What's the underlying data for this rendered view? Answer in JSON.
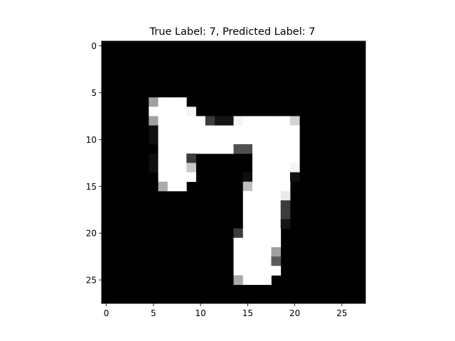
{
  "chart_data": {
    "type": "heatmap",
    "title": "True Label: 7, Predicted Label: 7",
    "colormap": "gray",
    "rows": 28,
    "cols": 28,
    "value_range": [
      0,
      255
    ],
    "x_ticks": [
      0,
      5,
      10,
      15,
      20,
      25
    ],
    "y_ticks": [
      0,
      5,
      10,
      15,
      20,
      25
    ],
    "x_tick_labels": [
      "0",
      "5",
      "10",
      "15",
      "20",
      "25"
    ],
    "y_tick_labels": [
      "0",
      "5",
      "10",
      "15",
      "20",
      "25"
    ],
    "grid": false,
    "pixels": [
      {
        "r": 6,
        "c": 5,
        "v": 160
      },
      {
        "r": 6,
        "c": 6,
        "v": 255
      },
      {
        "r": 6,
        "c": 7,
        "v": 255
      },
      {
        "r": 6,
        "c": 8,
        "v": 255
      },
      {
        "r": 7,
        "c": 5,
        "v": 255
      },
      {
        "r": 7,
        "c": 6,
        "v": 255
      },
      {
        "r": 7,
        "c": 7,
        "v": 255
      },
      {
        "r": 7,
        "c": 8,
        "v": 255
      },
      {
        "r": 7,
        "c": 9,
        "v": 245
      },
      {
        "r": 8,
        "c": 5,
        "v": 160
      },
      {
        "r": 8,
        "c": 6,
        "v": 255
      },
      {
        "r": 8,
        "c": 7,
        "v": 255
      },
      {
        "r": 8,
        "c": 8,
        "v": 255
      },
      {
        "r": 8,
        "c": 9,
        "v": 255
      },
      {
        "r": 8,
        "c": 10,
        "v": 255
      },
      {
        "r": 8,
        "c": 11,
        "v": 60
      },
      {
        "r": 8,
        "c": 12,
        "v": 20
      },
      {
        "r": 8,
        "c": 13,
        "v": 20
      },
      {
        "r": 8,
        "c": 14,
        "v": 245
      },
      {
        "r": 8,
        "c": 15,
        "v": 255
      },
      {
        "r": 8,
        "c": 16,
        "v": 255
      },
      {
        "r": 8,
        "c": 17,
        "v": 255
      },
      {
        "r": 8,
        "c": 18,
        "v": 255
      },
      {
        "r": 8,
        "c": 19,
        "v": 255
      },
      {
        "r": 8,
        "c": 20,
        "v": 210
      },
      {
        "r": 9,
        "c": 5,
        "v": 15
      },
      {
        "r": 9,
        "c": 6,
        "v": 255
      },
      {
        "r": 9,
        "c": 7,
        "v": 255
      },
      {
        "r": 9,
        "c": 8,
        "v": 255
      },
      {
        "r": 9,
        "c": 9,
        "v": 255
      },
      {
        "r": 9,
        "c": 10,
        "v": 255
      },
      {
        "r": 9,
        "c": 11,
        "v": 255
      },
      {
        "r": 9,
        "c": 12,
        "v": 255
      },
      {
        "r": 9,
        "c": 13,
        "v": 255
      },
      {
        "r": 9,
        "c": 14,
        "v": 255
      },
      {
        "r": 9,
        "c": 15,
        "v": 255
      },
      {
        "r": 9,
        "c": 16,
        "v": 255
      },
      {
        "r": 9,
        "c": 17,
        "v": 255
      },
      {
        "r": 9,
        "c": 18,
        "v": 255
      },
      {
        "r": 9,
        "c": 19,
        "v": 255
      },
      {
        "r": 9,
        "c": 20,
        "v": 255
      },
      {
        "r": 10,
        "c": 5,
        "v": 15
      },
      {
        "r": 10,
        "c": 6,
        "v": 255
      },
      {
        "r": 10,
        "c": 7,
        "v": 255
      },
      {
        "r": 10,
        "c": 8,
        "v": 255
      },
      {
        "r": 10,
        "c": 9,
        "v": 255
      },
      {
        "r": 10,
        "c": 10,
        "v": 255
      },
      {
        "r": 10,
        "c": 11,
        "v": 255
      },
      {
        "r": 10,
        "c": 12,
        "v": 255
      },
      {
        "r": 10,
        "c": 13,
        "v": 255
      },
      {
        "r": 10,
        "c": 14,
        "v": 255
      },
      {
        "r": 10,
        "c": 15,
        "v": 255
      },
      {
        "r": 10,
        "c": 16,
        "v": 255
      },
      {
        "r": 10,
        "c": 17,
        "v": 255
      },
      {
        "r": 10,
        "c": 18,
        "v": 255
      },
      {
        "r": 10,
        "c": 19,
        "v": 255
      },
      {
        "r": 10,
        "c": 20,
        "v": 255
      },
      {
        "r": 11,
        "c": 6,
        "v": 255
      },
      {
        "r": 11,
        "c": 7,
        "v": 255
      },
      {
        "r": 11,
        "c": 8,
        "v": 255
      },
      {
        "r": 11,
        "c": 9,
        "v": 255
      },
      {
        "r": 11,
        "c": 10,
        "v": 255
      },
      {
        "r": 11,
        "c": 11,
        "v": 255
      },
      {
        "r": 11,
        "c": 12,
        "v": 255
      },
      {
        "r": 11,
        "c": 13,
        "v": 255
      },
      {
        "r": 11,
        "c": 14,
        "v": 80
      },
      {
        "r": 11,
        "c": 15,
        "v": 80
      },
      {
        "r": 11,
        "c": 16,
        "v": 255
      },
      {
        "r": 11,
        "c": 17,
        "v": 255
      },
      {
        "r": 11,
        "c": 18,
        "v": 255
      },
      {
        "r": 11,
        "c": 19,
        "v": 255
      },
      {
        "r": 11,
        "c": 20,
        "v": 255
      },
      {
        "r": 12,
        "c": 5,
        "v": 15
      },
      {
        "r": 12,
        "c": 6,
        "v": 255
      },
      {
        "r": 12,
        "c": 7,
        "v": 255
      },
      {
        "r": 12,
        "c": 8,
        "v": 255
      },
      {
        "r": 12,
        "c": 9,
        "v": 60
      },
      {
        "r": 12,
        "c": 16,
        "v": 255
      },
      {
        "r": 12,
        "c": 17,
        "v": 255
      },
      {
        "r": 12,
        "c": 18,
        "v": 255
      },
      {
        "r": 12,
        "c": 19,
        "v": 255
      },
      {
        "r": 12,
        "c": 20,
        "v": 255
      },
      {
        "r": 13,
        "c": 5,
        "v": 15
      },
      {
        "r": 13,
        "c": 6,
        "v": 255
      },
      {
        "r": 13,
        "c": 7,
        "v": 255
      },
      {
        "r": 13,
        "c": 8,
        "v": 255
      },
      {
        "r": 13,
        "c": 9,
        "v": 200
      },
      {
        "r": 13,
        "c": 16,
        "v": 255
      },
      {
        "r": 13,
        "c": 17,
        "v": 255
      },
      {
        "r": 13,
        "c": 18,
        "v": 255
      },
      {
        "r": 13,
        "c": 19,
        "v": 255
      },
      {
        "r": 13,
        "c": 20,
        "v": 245
      },
      {
        "r": 14,
        "c": 6,
        "v": 255
      },
      {
        "r": 14,
        "c": 7,
        "v": 255
      },
      {
        "r": 14,
        "c": 8,
        "v": 255
      },
      {
        "r": 14,
        "c": 9,
        "v": 255
      },
      {
        "r": 14,
        "c": 15,
        "v": 15
      },
      {
        "r": 14,
        "c": 16,
        "v": 255
      },
      {
        "r": 14,
        "c": 17,
        "v": 255
      },
      {
        "r": 14,
        "c": 18,
        "v": 255
      },
      {
        "r": 14,
        "c": 19,
        "v": 255
      },
      {
        "r": 14,
        "c": 20,
        "v": 15
      },
      {
        "r": 15,
        "c": 6,
        "v": 170
      },
      {
        "r": 15,
        "c": 7,
        "v": 255
      },
      {
        "r": 15,
        "c": 8,
        "v": 255
      },
      {
        "r": 15,
        "c": 15,
        "v": 190
      },
      {
        "r": 15,
        "c": 16,
        "v": 255
      },
      {
        "r": 15,
        "c": 17,
        "v": 255
      },
      {
        "r": 15,
        "c": 18,
        "v": 255
      },
      {
        "r": 15,
        "c": 19,
        "v": 255
      },
      {
        "r": 16,
        "c": 15,
        "v": 255
      },
      {
        "r": 16,
        "c": 16,
        "v": 255
      },
      {
        "r": 16,
        "c": 17,
        "v": 255
      },
      {
        "r": 16,
        "c": 18,
        "v": 255
      },
      {
        "r": 16,
        "c": 19,
        "v": 235
      },
      {
        "r": 17,
        "c": 15,
        "v": 255
      },
      {
        "r": 17,
        "c": 16,
        "v": 255
      },
      {
        "r": 17,
        "c": 17,
        "v": 255
      },
      {
        "r": 17,
        "c": 18,
        "v": 255
      },
      {
        "r": 17,
        "c": 19,
        "v": 60
      },
      {
        "r": 18,
        "c": 15,
        "v": 255
      },
      {
        "r": 18,
        "c": 16,
        "v": 255
      },
      {
        "r": 18,
        "c": 17,
        "v": 255
      },
      {
        "r": 18,
        "c": 18,
        "v": 255
      },
      {
        "r": 18,
        "c": 19,
        "v": 60
      },
      {
        "r": 19,
        "c": 15,
        "v": 255
      },
      {
        "r": 19,
        "c": 16,
        "v": 255
      },
      {
        "r": 19,
        "c": 17,
        "v": 255
      },
      {
        "r": 19,
        "c": 18,
        "v": 255
      },
      {
        "r": 19,
        "c": 19,
        "v": 20
      },
      {
        "r": 20,
        "c": 14,
        "v": 60
      },
      {
        "r": 20,
        "c": 15,
        "v": 255
      },
      {
        "r": 20,
        "c": 16,
        "v": 255
      },
      {
        "r": 20,
        "c": 17,
        "v": 255
      },
      {
        "r": 20,
        "c": 18,
        "v": 255
      },
      {
        "r": 21,
        "c": 14,
        "v": 255
      },
      {
        "r": 21,
        "c": 15,
        "v": 255
      },
      {
        "r": 21,
        "c": 16,
        "v": 255
      },
      {
        "r": 21,
        "c": 17,
        "v": 255
      },
      {
        "r": 21,
        "c": 18,
        "v": 255
      },
      {
        "r": 22,
        "c": 14,
        "v": 255
      },
      {
        "r": 22,
        "c": 15,
        "v": 255
      },
      {
        "r": 22,
        "c": 16,
        "v": 255
      },
      {
        "r": 22,
        "c": 17,
        "v": 255
      },
      {
        "r": 22,
        "c": 18,
        "v": 160
      },
      {
        "r": 23,
        "c": 14,
        "v": 255
      },
      {
        "r": 23,
        "c": 15,
        "v": 255
      },
      {
        "r": 23,
        "c": 16,
        "v": 255
      },
      {
        "r": 23,
        "c": 17,
        "v": 255
      },
      {
        "r": 23,
        "c": 18,
        "v": 90
      },
      {
        "r": 24,
        "c": 14,
        "v": 255
      },
      {
        "r": 24,
        "c": 15,
        "v": 255
      },
      {
        "r": 24,
        "c": 16,
        "v": 255
      },
      {
        "r": 24,
        "c": 17,
        "v": 255
      },
      {
        "r": 24,
        "c": 18,
        "v": 255
      },
      {
        "r": 25,
        "c": 14,
        "v": 170
      },
      {
        "r": 25,
        "c": 15,
        "v": 255
      },
      {
        "r": 25,
        "c": 16,
        "v": 255
      },
      {
        "r": 25,
        "c": 17,
        "v": 255
      }
    ]
  }
}
